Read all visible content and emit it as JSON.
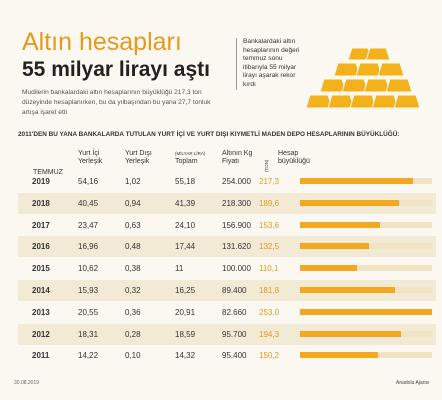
{
  "header": {
    "title": "Altın hesapları",
    "subtitle": "55 milyar lirayı aştı",
    "intro": "Mudilerin bankalardaki altın hesaplarının büyüklüğü 217,3 ton düzeyinde hesaplanırken, bu da yılbaşından bu yana 27,7 tonluk artışa işaret etti"
  },
  "side_note": "Bankalardaki altın hesaplarının değeri temmuz sonu itibarıyla 55 milyar lirayı aşarak rekor kırdı",
  "table": {
    "caption": "2011'DEN BU YANA BANKALARDA TUTULAN YURT İÇİ VE YURT DIŞI KIYMETLİ MADEN DEPO HESAPLARININ BÜYÜKLÜĞÜ:",
    "month": "TEMMUZ",
    "unit_money": "(MİLYAR LİRA)",
    "unit_weight": "(TON)",
    "columns": [
      "Yurt İçi\nYerleşik",
      "Yurt Dışı\nYerleşik",
      "Toplam",
      "Altının Kg\nFiyatı",
      "Hesap\nbüyüklüğü"
    ],
    "rows": [
      [
        "2019",
        "54,16",
        "1,02",
        "55,18",
        "254.000",
        "217,3"
      ],
      [
        "2018",
        "40,45",
        "0,94",
        "41,39",
        "218.300",
        "189,6"
      ],
      [
        "2017",
        "23,47",
        "0,63",
        "24,10",
        "156.900",
        "153,6"
      ],
      [
        "2016",
        "16,96",
        "0,48",
        "17,44",
        "131.620",
        "132,5"
      ],
      [
        "2015",
        "10,62",
        "0,38",
        "11",
        "100.000",
        "110,1"
      ],
      [
        "2014",
        "15,93",
        "0,32",
        "16,25",
        "89.400",
        "181,8"
      ],
      [
        "2013",
        "20,55",
        "0,36",
        "20,91",
        "82.660",
        "253,0"
      ],
      [
        "2012",
        "18,31",
        "0,28",
        "18,59",
        "95.700",
        "194,3"
      ],
      [
        "2011",
        "14,22",
        "0,10",
        "14,32",
        "95.400",
        "150,2"
      ]
    ]
  },
  "footer": {
    "date": "30.08.2019",
    "source": "Anadolu Ajansı"
  }
}
